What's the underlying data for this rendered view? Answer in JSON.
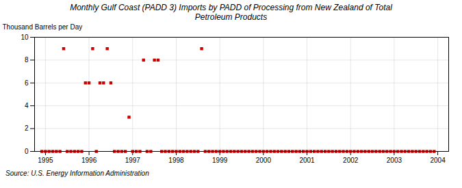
{
  "chart_data": {
    "type": "scatter",
    "title": "Monthly Gulf Coast (PADD 3) Imports by PADD of Processing from New Zealand of Total\nPetroleum Products",
    "ylabel": "Thousand Barrels per Day",
    "source": "Source: U.S. Energy Information Administration",
    "color": "#cc0000",
    "marker": "square",
    "grid": true,
    "xlim": [
      1994.75,
      2004.25
    ],
    "ylim": [
      0,
      10
    ],
    "xticks": [
      1995,
      1996,
      1997,
      1998,
      1999,
      2000,
      2001,
      2002,
      2003,
      2004
    ],
    "yticks": [
      0,
      2,
      4,
      6,
      8,
      10
    ],
    "x": [
      1994.917,
      1995.0,
      1995.083,
      1995.167,
      1995.25,
      1995.333,
      1995.417,
      1995.5,
      1995.583,
      1995.667,
      1995.75,
      1995.833,
      1995.917,
      1996.0,
      1996.083,
      1996.167,
      1996.25,
      1996.333,
      1996.417,
      1996.5,
      1996.583,
      1996.667,
      1996.75,
      1996.833,
      1996.917,
      1997.0,
      1997.083,
      1997.167,
      1997.25,
      1997.333,
      1997.417,
      1997.5,
      1997.583,
      1997.667,
      1997.75,
      1997.833,
      1997.917,
      1998.0,
      1998.083,
      1998.167,
      1998.25,
      1998.333,
      1998.417,
      1998.5,
      1998.583,
      1998.667,
      1998.75,
      1998.833,
      1998.917,
      1999.0,
      1999.083,
      1999.167,
      1999.25,
      1999.333,
      1999.417,
      1999.5,
      1999.583,
      1999.667,
      1999.75,
      1999.833,
      1999.917,
      2000.0,
      2000.083,
      2000.167,
      2000.25,
      2000.333,
      2000.417,
      2000.5,
      2000.583,
      2000.667,
      2000.75,
      2000.833,
      2000.917,
      2001.0,
      2001.083,
      2001.167,
      2001.25,
      2001.333,
      2001.417,
      2001.5,
      2001.583,
      2001.667,
      2001.75,
      2001.833,
      2001.917,
      2002.0,
      2002.083,
      2002.167,
      2002.25,
      2002.333,
      2002.417,
      2002.5,
      2002.583,
      2002.667,
      2002.75,
      2002.833,
      2002.917,
      2003.0,
      2003.083,
      2003.167,
      2003.25,
      2003.333,
      2003.417,
      2003.5,
      2003.583,
      2003.667,
      2003.75,
      2003.833,
      2003.917
    ],
    "values": [
      0,
      0,
      0,
      0,
      0,
      0,
      9,
      0,
      0,
      0,
      0,
      0,
      6,
      6,
      9,
      0,
      6,
      6,
      9,
      6,
      0,
      0,
      0,
      0,
      3,
      0,
      0,
      0,
      8,
      0,
      0,
      8,
      8,
      0,
      0,
      0,
      0,
      0,
      0,
      0,
      0,
      0,
      0,
      0,
      9,
      0,
      0,
      0,
      0,
      0,
      0,
      0,
      0,
      0,
      0,
      0,
      0,
      0,
      0,
      0,
      0,
      0,
      0,
      0,
      0,
      0,
      0,
      0,
      0,
      0,
      0,
      0,
      0,
      0,
      0,
      0,
      0,
      0,
      0,
      0,
      0,
      0,
      0,
      0,
      0,
      0,
      0,
      0,
      0,
      0,
      0,
      0,
      0,
      0,
      0,
      0,
      0,
      0,
      0,
      0,
      0,
      0,
      0,
      0,
      0,
      0,
      0,
      0,
      0
    ]
  }
}
